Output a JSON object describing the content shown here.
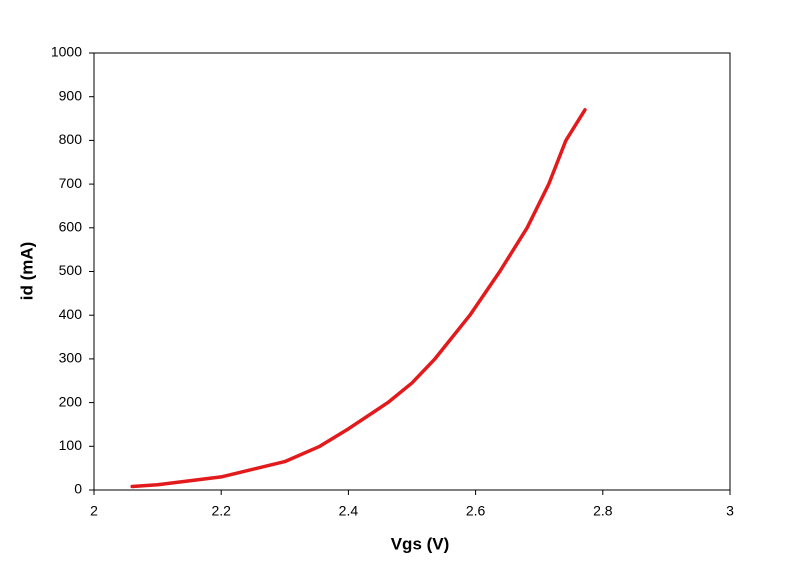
{
  "chart_data": {
    "type": "line",
    "x_label": "Vgs   (V)",
    "y_label": "id   (mA)",
    "xlim": [
      2,
      3
    ],
    "xticks": [
      2,
      2.2,
      2.4,
      2.6,
      2.8,
      3
    ],
    "ylim": [
      0,
      1000
    ],
    "yticks": [
      0,
      100,
      200,
      300,
      400,
      500,
      600,
      700,
      800,
      900,
      1000
    ],
    "grid": false,
    "series": [
      {
        "name": "id",
        "color": "#e31a1c",
        "x": [
          2.06,
          2.1,
          2.2,
          2.3,
          2.355,
          2.4,
          2.462,
          2.5,
          2.536,
          2.591,
          2.638,
          2.681,
          2.715,
          2.742,
          2.772
        ],
        "values": [
          8,
          12,
          30,
          65,
          100,
          140,
          200,
          245,
          300,
          400,
          500,
          600,
          700,
          800,
          870
        ]
      }
    ]
  }
}
